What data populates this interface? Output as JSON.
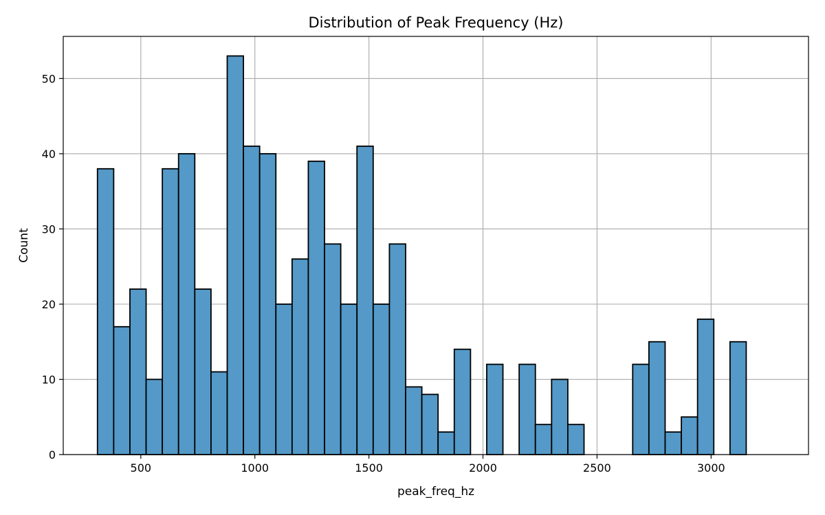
{
  "chart_data": {
    "type": "bar",
    "title": "Distribution of Peak Frequency (Hz)",
    "xlabel": "peak_freq_hz",
    "ylabel": "Count",
    "xlim": [
      160,
      3427
    ],
    "ylim": [
      0,
      55.6
    ],
    "xticks": [
      500,
      1000,
      1500,
      2000,
      2500,
      3000
    ],
    "xtick_labels": [
      "500",
      "1000",
      "1500",
      "2000",
      "2500",
      "3000"
    ],
    "yticks": [
      0,
      10,
      20,
      30,
      40,
      50
    ],
    "ytick_labels": [
      "0",
      "10",
      "20",
      "30",
      "40",
      "50"
    ],
    "grid": true,
    "bar_color": "#5499c7",
    "edge_color": "#000000",
    "bin_edges": [
      310,
      381.1,
      452.2,
      523.3,
      594.4,
      665.5,
      736.6,
      807.7,
      878.8,
      949.9,
      1021,
      1092.1,
      1163.2,
      1234.3,
      1305.4,
      1376.5,
      1447.6,
      1518.7,
      1589.8,
      1660.9,
      1732,
      1803.1,
      1874.2,
      1945.3,
      2016.4,
      2087.5,
      2158.6,
      2229.7,
      2300.8,
      2371.9,
      2443,
      2514.1,
      2585.2,
      2656.3,
      2727.4,
      2798.5,
      2869.6,
      2940.7,
      3011.8,
      3082.9,
      3154
    ],
    "counts": [
      38,
      17,
      22,
      10,
      38,
      40,
      22,
      11,
      53,
      41,
      40,
      20,
      26,
      39,
      28,
      20,
      41,
      20,
      28,
      9,
      8,
      3,
      14,
      0,
      12,
      0,
      12,
      4,
      10,
      4,
      0,
      0,
      0,
      12,
      15,
      3,
      5,
      18,
      0,
      15
    ]
  }
}
